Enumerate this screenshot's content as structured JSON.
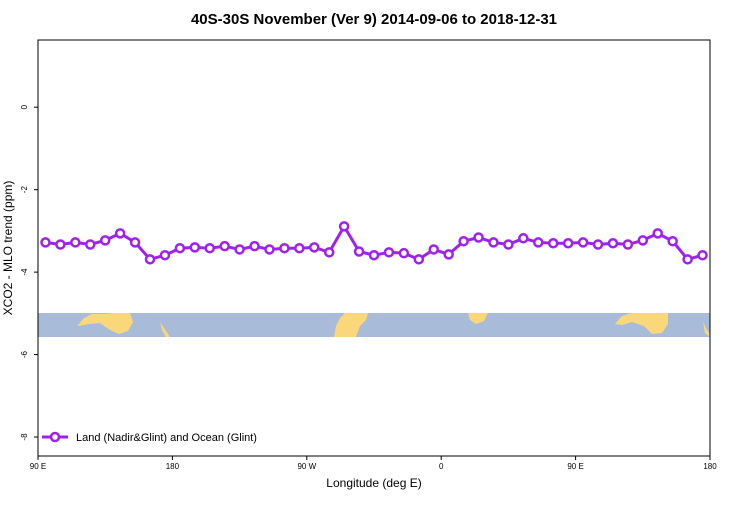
{
  "chart_data": {
    "type": "line",
    "title": "40S-30S November (Ver 9)   2014-09-06 to 2018-12-31",
    "x_label": "Longitude (deg E)",
    "y_label": "XCO2 - MLO trend (ppm)",
    "x": [
      95,
      105,
      115,
      125,
      135,
      145,
      155,
      165,
      175,
      185,
      195,
      205,
      215,
      225,
      235,
      245,
      255,
      265,
      275,
      285,
      295,
      305,
      315,
      325,
      335,
      345,
      355,
      365,
      375,
      385,
      395,
      405,
      415,
      425,
      435,
      445,
      455,
      465,
      475,
      485,
      495,
      505,
      515,
      525,
      535
    ],
    "series": [
      {
        "name": "Land (Nadir&Glint) and Ocean (Glint)",
        "color": "#a020f0",
        "values": [
          -3.28,
          -3.33,
          -3.28,
          -3.33,
          -3.23,
          -3.06,
          -3.28,
          -3.69,
          -3.59,
          -3.42,
          -3.4,
          -3.42,
          -3.37,
          -3.45,
          -3.37,
          -3.45,
          -3.42,
          -3.42,
          -3.4,
          -3.52,
          -2.89,
          -3.5,
          -3.59,
          -3.52,
          -3.54,
          -3.69,
          -3.45,
          -3.57,
          -3.25,
          -3.16,
          -3.28,
          -3.33,
          -3.18,
          -3.28,
          -3.3,
          -3.3,
          -3.28,
          -3.33,
          -3.3,
          -3.33,
          -3.23,
          -3.06,
          -3.25,
          -3.69,
          -3.59
        ]
      }
    ],
    "xlim": [
      90,
      540
    ],
    "xticks": [
      {
        "value": 90,
        "label": "90 E"
      },
      {
        "value": 180,
        "label": "180"
      },
      {
        "value": 270,
        "label": "90 W"
      },
      {
        "value": 360,
        "label": "0"
      },
      {
        "value": 450,
        "label": "90 E"
      },
      {
        "value": 540,
        "label": "180"
      }
    ],
    "ylim": [
      -8.46,
      1.63
    ],
    "yticks": [
      0,
      -2,
      -4,
      -6,
      -8
    ],
    "grid": false,
    "legend": "bottom-left"
  }
}
